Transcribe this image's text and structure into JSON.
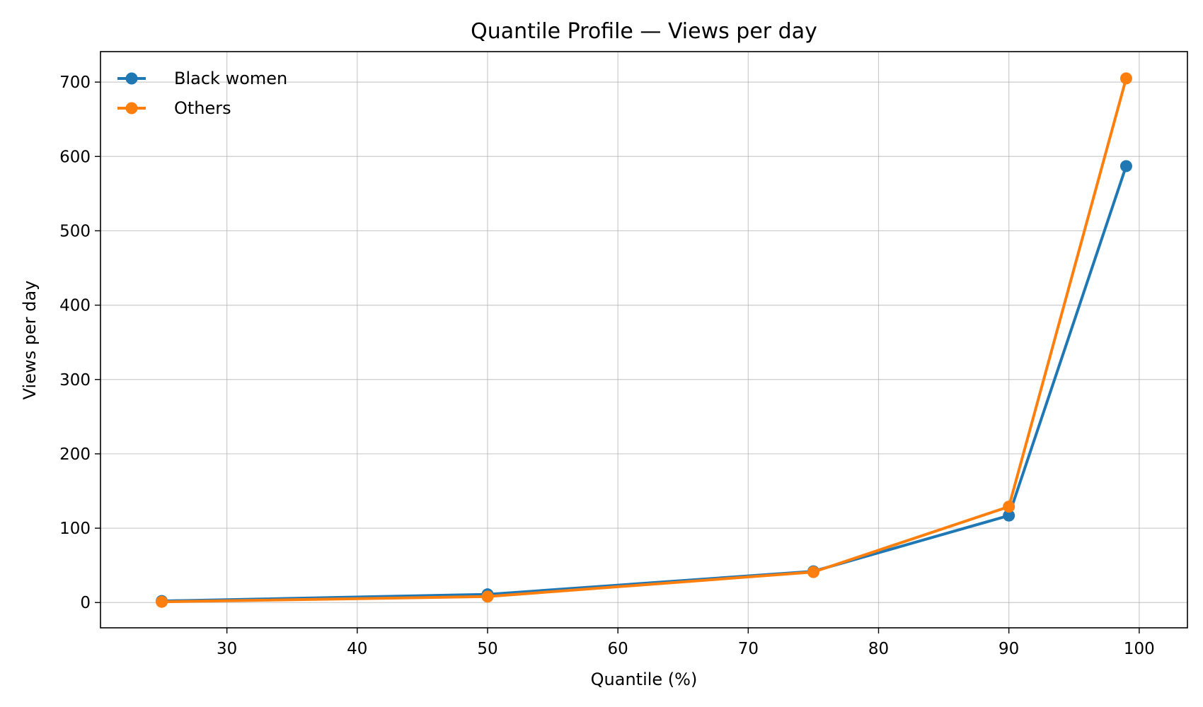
{
  "chart_data": {
    "type": "line",
    "title": "Quantile Profile — Views per day",
    "xlabel": "Quantile (%)",
    "ylabel": "Views per day",
    "xlim": [
      20.3,
      103.7
    ],
    "ylim": [
      -34,
      741
    ],
    "xticks": [
      30,
      40,
      50,
      60,
      70,
      80,
      90,
      100
    ],
    "yticks": [
      0,
      100,
      200,
      300,
      400,
      500,
      600,
      700
    ],
    "grid": true,
    "legend_position": "top-left",
    "series": [
      {
        "name": "Black women",
        "color": "#1f77b4",
        "x": [
          25,
          50,
          75,
          90,
          99
        ],
        "y": [
          2,
          11,
          42,
          117,
          587
        ]
      },
      {
        "name": "Others",
        "color": "#ff7f0e",
        "x": [
          25,
          50,
          75,
          90,
          99
        ],
        "y": [
          1,
          8,
          41,
          129,
          705
        ]
      }
    ]
  }
}
